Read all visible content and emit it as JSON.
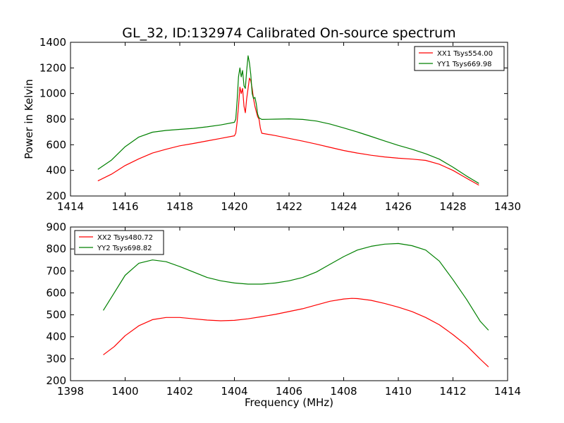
{
  "chart_data": [
    {
      "type": "line",
      "title": "GL_32, ID:132974 Calibrated On-source spectrum",
      "xlabel": "",
      "ylabel": "Power in Kelvin",
      "xlim": [
        1414,
        1430
      ],
      "ylim": [
        200,
        1400
      ],
      "xticks": [
        "1414",
        "1416",
        "1418",
        "1420",
        "1422",
        "1424",
        "1426",
        "1428",
        "1430"
      ],
      "yticks": [
        "200",
        "400",
        "600",
        "800",
        "1000",
        "1200",
        "1400"
      ],
      "grid": false,
      "legend_position": "top-right",
      "series": [
        {
          "name": "XX1 Tsys554.00",
          "color": "#ff0000",
          "points": [
            [
              1415.0,
              318
            ],
            [
              1415.5,
              370
            ],
            [
              1416.0,
              438
            ],
            [
              1416.5,
              490
            ],
            [
              1417.0,
              535
            ],
            [
              1417.5,
              565
            ],
            [
              1418.0,
              592
            ],
            [
              1418.5,
              610
            ],
            [
              1419.0,
              630
            ],
            [
              1419.5,
              650
            ],
            [
              1420.0,
              670
            ],
            [
              1420.05,
              690
            ],
            [
              1420.1,
              780
            ],
            [
              1420.15,
              900
            ],
            [
              1420.2,
              1050
            ],
            [
              1420.25,
              1000
            ],
            [
              1420.3,
              1040
            ],
            [
              1420.35,
              900
            ],
            [
              1420.4,
              850
            ],
            [
              1420.45,
              960
            ],
            [
              1420.5,
              1040
            ],
            [
              1420.55,
              1120
            ],
            [
              1420.6,
              1100
            ],
            [
              1420.65,
              1040
            ],
            [
              1420.7,
              960
            ],
            [
              1420.75,
              900
            ],
            [
              1420.8,
              860
            ],
            [
              1420.85,
              820
            ],
            [
              1420.9,
              800
            ],
            [
              1420.95,
              730
            ],
            [
              1421.0,
              690
            ],
            [
              1421.5,
              672
            ],
            [
              1422.0,
              650
            ],
            [
              1422.5,
              628
            ],
            [
              1423.0,
              605
            ],
            [
              1423.5,
              580
            ],
            [
              1424.0,
              555
            ],
            [
              1424.5,
              535
            ],
            [
              1425.0,
              518
            ],
            [
              1425.5,
              505
            ],
            [
              1426.0,
              495
            ],
            [
              1426.5,
              488
            ],
            [
              1427.0,
              478
            ],
            [
              1427.5,
              448
            ],
            [
              1428.0,
              400
            ],
            [
              1428.5,
              338
            ],
            [
              1428.95,
              285
            ]
          ]
        },
        {
          "name": "YY1 Tsys669.98",
          "color": "#008000",
          "points": [
            [
              1415.0,
              408
            ],
            [
              1415.5,
              480
            ],
            [
              1416.0,
              585
            ],
            [
              1416.5,
              660
            ],
            [
              1417.0,
              698
            ],
            [
              1417.5,
              712
            ],
            [
              1418.0,
              720
            ],
            [
              1418.5,
              728
            ],
            [
              1419.0,
              740
            ],
            [
              1419.5,
              755
            ],
            [
              1420.0,
              775
            ],
            [
              1420.05,
              800
            ],
            [
              1420.1,
              950
            ],
            [
              1420.15,
              1130
            ],
            [
              1420.2,
              1200
            ],
            [
              1420.25,
              1130
            ],
            [
              1420.3,
              1180
            ],
            [
              1420.35,
              1060
            ],
            [
              1420.4,
              1040
            ],
            [
              1420.45,
              1180
            ],
            [
              1420.5,
              1295
            ],
            [
              1420.55,
              1240
            ],
            [
              1420.6,
              1150
            ],
            [
              1420.65,
              1000
            ],
            [
              1420.7,
              960
            ],
            [
              1420.75,
              970
            ],
            [
              1420.8,
              920
            ],
            [
              1420.85,
              840
            ],
            [
              1420.9,
              810
            ],
            [
              1421.0,
              798
            ],
            [
              1421.5,
              800
            ],
            [
              1422.0,
              802
            ],
            [
              1422.5,
              798
            ],
            [
              1423.0,
              785
            ],
            [
              1423.5,
              762
            ],
            [
              1424.0,
              732
            ],
            [
              1424.5,
              700
            ],
            [
              1425.0,
              665
            ],
            [
              1425.5,
              630
            ],
            [
              1426.0,
              595
            ],
            [
              1426.5,
              565
            ],
            [
              1427.0,
              530
            ],
            [
              1427.5,
              488
            ],
            [
              1428.0,
              425
            ],
            [
              1428.5,
              355
            ],
            [
              1428.95,
              298
            ]
          ]
        }
      ]
    },
    {
      "type": "line",
      "title": "",
      "xlabel": "Frequency (MHz)",
      "ylabel": "",
      "xlim": [
        1398,
        1414
      ],
      "ylim": [
        200,
        900
      ],
      "xticks": [
        "1398",
        "1400",
        "1402",
        "1404",
        "1406",
        "1408",
        "1410",
        "1412",
        "1414"
      ],
      "yticks": [
        "200",
        "300",
        "400",
        "500",
        "600",
        "700",
        "800",
        "900"
      ],
      "grid": false,
      "legend_position": "top-left",
      "series": [
        {
          "name": "XX2 Tsys480.72",
          "color": "#ff0000",
          "points": [
            [
              1399.2,
              318
            ],
            [
              1399.6,
              355
            ],
            [
              1400.0,
              405
            ],
            [
              1400.5,
              450
            ],
            [
              1401.0,
              478
            ],
            [
              1401.5,
              488
            ],
            [
              1402.0,
              488
            ],
            [
              1402.5,
              482
            ],
            [
              1403.0,
              476
            ],
            [
              1403.5,
              473
            ],
            [
              1404.0,
              475
            ],
            [
              1404.5,
              482
            ],
            [
              1405.0,
              492
            ],
            [
              1405.5,
              502
            ],
            [
              1406.0,
              515
            ],
            [
              1406.5,
              528
            ],
            [
              1407.0,
              545
            ],
            [
              1407.5,
              562
            ],
            [
              1408.0,
              572
            ],
            [
              1408.3,
              575
            ],
            [
              1408.5,
              574
            ],
            [
              1409.0,
              566
            ],
            [
              1409.5,
              552
            ],
            [
              1410.0,
              535
            ],
            [
              1410.5,
              515
            ],
            [
              1411.0,
              488
            ],
            [
              1411.5,
              455
            ],
            [
              1412.0,
              410
            ],
            [
              1412.5,
              360
            ],
            [
              1413.0,
              298
            ],
            [
              1413.3,
              263
            ]
          ]
        },
        {
          "name": "YY2 Tsys698.82",
          "color": "#008000",
          "points": [
            [
              1399.2,
              520
            ],
            [
              1399.6,
              600
            ],
            [
              1400.0,
              680
            ],
            [
              1400.5,
              735
            ],
            [
              1401.0,
              750
            ],
            [
              1401.5,
              742
            ],
            [
              1402.0,
              720
            ],
            [
              1402.5,
              695
            ],
            [
              1403.0,
              670
            ],
            [
              1403.5,
              655
            ],
            [
              1404.0,
              645
            ],
            [
              1404.5,
              640
            ],
            [
              1405.0,
              640
            ],
            [
              1405.5,
              645
            ],
            [
              1406.0,
              655
            ],
            [
              1406.5,
              670
            ],
            [
              1407.0,
              695
            ],
            [
              1407.5,
              730
            ],
            [
              1408.0,
              765
            ],
            [
              1408.5,
              795
            ],
            [
              1409.0,
              812
            ],
            [
              1409.5,
              822
            ],
            [
              1410.0,
              825
            ],
            [
              1410.5,
              815
            ],
            [
              1411.0,
              795
            ],
            [
              1411.5,
              745
            ],
            [
              1412.0,
              660
            ],
            [
              1412.5,
              570
            ],
            [
              1413.0,
              470
            ],
            [
              1413.3,
              430
            ]
          ]
        }
      ]
    }
  ]
}
